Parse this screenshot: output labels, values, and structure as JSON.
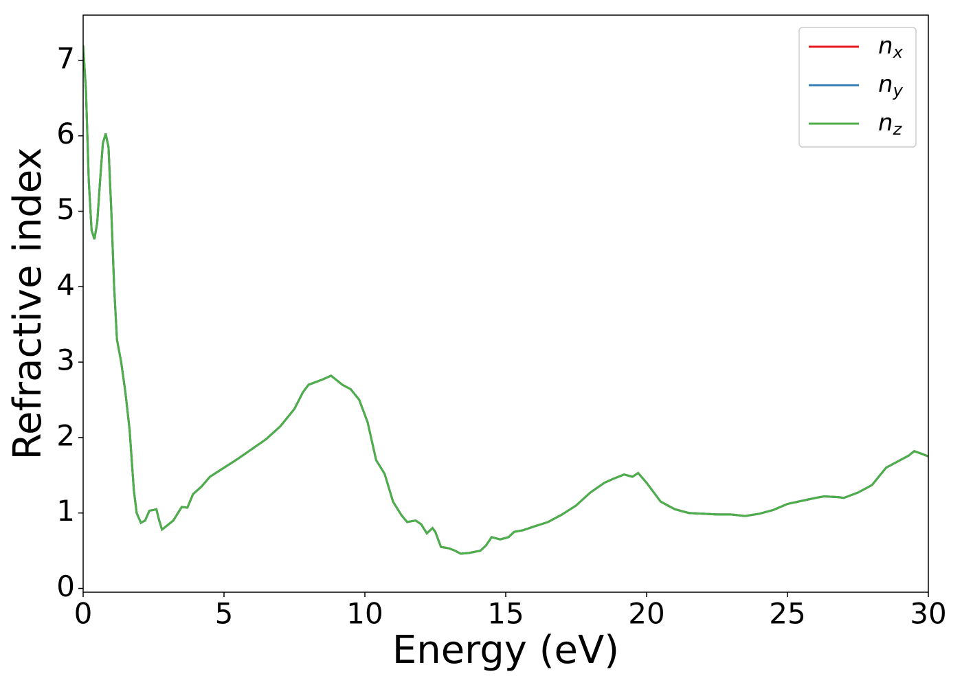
{
  "chart_data": {
    "type": "line",
    "xlabel": "Energy (eV)",
    "ylabel": "Refractive index",
    "xlim": [
      0,
      30
    ],
    "ylim": [
      -0.05,
      7.6
    ],
    "xticks": [
      0,
      5,
      10,
      15,
      20,
      25,
      30
    ],
    "yticks": [
      0,
      1,
      2,
      3,
      4,
      5,
      6,
      7
    ],
    "legend": "upper right",
    "x": [
      0,
      0.1,
      0.2,
      0.3,
      0.4,
      0.5,
      0.6,
      0.7,
      0.8,
      0.9,
      1.0,
      1.1,
      1.2,
      1.35,
      1.5,
      1.65,
      1.8,
      1.9,
      2.05,
      2.2,
      2.35,
      2.5,
      2.6,
      2.7,
      2.8,
      3.0,
      3.2,
      3.5,
      3.7,
      3.9,
      4.2,
      4.5,
      5.0,
      5.5,
      6.0,
      6.5,
      7.0,
      7.5,
      7.8,
      8.0,
      8.5,
      8.8,
      9.2,
      9.5,
      9.8,
      10.1,
      10.4,
      10.7,
      11.0,
      11.3,
      11.5,
      11.8,
      12.0,
      12.2,
      12.4,
      12.5,
      12.7,
      13.0,
      13.2,
      13.4,
      13.7,
      14.1,
      14.3,
      14.5,
      14.8,
      15.1,
      15.3,
      15.6,
      16.0,
      16.5,
      17.0,
      17.5,
      18.0,
      18.5,
      18.8,
      19.2,
      19.5,
      19.7,
      20.0,
      20.2,
      20.5,
      21.0,
      21.5,
      22.0,
      22.5,
      23.0,
      23.5,
      24.0,
      24.5,
      25.0,
      25.5,
      26.0,
      26.3,
      26.8,
      27.0,
      27.5,
      28.0,
      28.5,
      29.0,
      29.3,
      29.5,
      29.8,
      30.0
    ],
    "series": [
      {
        "name": "nx",
        "color": "#e41a1c",
        "values": [
          7.2,
          6.6,
          5.4,
          4.75,
          4.63,
          4.85,
          5.4,
          5.9,
          6.03,
          5.85,
          5.0,
          4.0,
          3.3,
          3.0,
          2.6,
          2.1,
          1.3,
          1.0,
          0.87,
          0.9,
          1.03,
          1.04,
          1.05,
          0.9,
          0.78,
          0.84,
          0.9,
          1.08,
          1.07,
          1.25,
          1.35,
          1.48,
          1.6,
          1.72,
          1.85,
          1.98,
          2.15,
          2.38,
          2.6,
          2.7,
          2.77,
          2.82,
          2.7,
          2.64,
          2.5,
          2.2,
          1.7,
          1.52,
          1.15,
          0.97,
          0.88,
          0.9,
          0.85,
          0.73,
          0.8,
          0.75,
          0.55,
          0.53,
          0.5,
          0.46,
          0.47,
          0.5,
          0.57,
          0.68,
          0.65,
          0.68,
          0.75,
          0.77,
          0.82,
          0.88,
          0.98,
          1.1,
          1.27,
          1.4,
          1.45,
          1.51,
          1.48,
          1.53,
          1.4,
          1.3,
          1.15,
          1.05,
          1.0,
          0.99,
          0.98,
          0.98,
          0.96,
          0.99,
          1.04,
          1.12,
          1.16,
          1.2,
          1.22,
          1.21,
          1.2,
          1.27,
          1.37,
          1.6,
          1.7,
          1.76,
          1.82,
          1.78,
          1.75
        ]
      },
      {
        "name": "ny",
        "color": "#377eb8",
        "values": [
          7.2,
          6.6,
          5.4,
          4.75,
          4.63,
          4.85,
          5.4,
          5.9,
          6.03,
          5.85,
          5.0,
          4.0,
          3.3,
          3.0,
          2.6,
          2.1,
          1.3,
          1.0,
          0.87,
          0.9,
          1.03,
          1.04,
          1.05,
          0.9,
          0.78,
          0.84,
          0.9,
          1.08,
          1.07,
          1.25,
          1.35,
          1.48,
          1.6,
          1.72,
          1.85,
          1.98,
          2.15,
          2.38,
          2.6,
          2.7,
          2.77,
          2.82,
          2.7,
          2.64,
          2.5,
          2.2,
          1.7,
          1.52,
          1.15,
          0.97,
          0.88,
          0.9,
          0.85,
          0.73,
          0.8,
          0.75,
          0.55,
          0.53,
          0.5,
          0.46,
          0.47,
          0.5,
          0.57,
          0.68,
          0.65,
          0.68,
          0.75,
          0.77,
          0.82,
          0.88,
          0.98,
          1.1,
          1.27,
          1.4,
          1.45,
          1.51,
          1.48,
          1.53,
          1.4,
          1.3,
          1.15,
          1.05,
          1.0,
          0.99,
          0.98,
          0.98,
          0.96,
          0.99,
          1.04,
          1.12,
          1.16,
          1.2,
          1.22,
          1.21,
          1.2,
          1.27,
          1.37,
          1.6,
          1.7,
          1.76,
          1.82,
          1.78,
          1.75
        ]
      },
      {
        "name": "nz",
        "color": "#4daf4a",
        "values": [
          7.2,
          6.6,
          5.4,
          4.75,
          4.63,
          4.85,
          5.4,
          5.9,
          6.03,
          5.85,
          5.0,
          4.0,
          3.3,
          3.0,
          2.6,
          2.1,
          1.3,
          1.0,
          0.87,
          0.9,
          1.03,
          1.04,
          1.05,
          0.9,
          0.78,
          0.84,
          0.9,
          1.08,
          1.07,
          1.25,
          1.35,
          1.48,
          1.6,
          1.72,
          1.85,
          1.98,
          2.15,
          2.38,
          2.6,
          2.7,
          2.77,
          2.82,
          2.7,
          2.64,
          2.5,
          2.2,
          1.7,
          1.52,
          1.15,
          0.97,
          0.88,
          0.9,
          0.85,
          0.73,
          0.8,
          0.75,
          0.55,
          0.53,
          0.5,
          0.46,
          0.47,
          0.5,
          0.57,
          0.68,
          0.65,
          0.68,
          0.75,
          0.77,
          0.82,
          0.88,
          0.98,
          1.1,
          1.27,
          1.4,
          1.45,
          1.51,
          1.48,
          1.53,
          1.4,
          1.3,
          1.15,
          1.05,
          1.0,
          0.99,
          0.98,
          0.98,
          0.96,
          0.99,
          1.04,
          1.12,
          1.16,
          1.2,
          1.22,
          1.21,
          1.2,
          1.27,
          1.37,
          1.6,
          1.7,
          1.76,
          1.82,
          1.78,
          1.75
        ]
      }
    ]
  }
}
